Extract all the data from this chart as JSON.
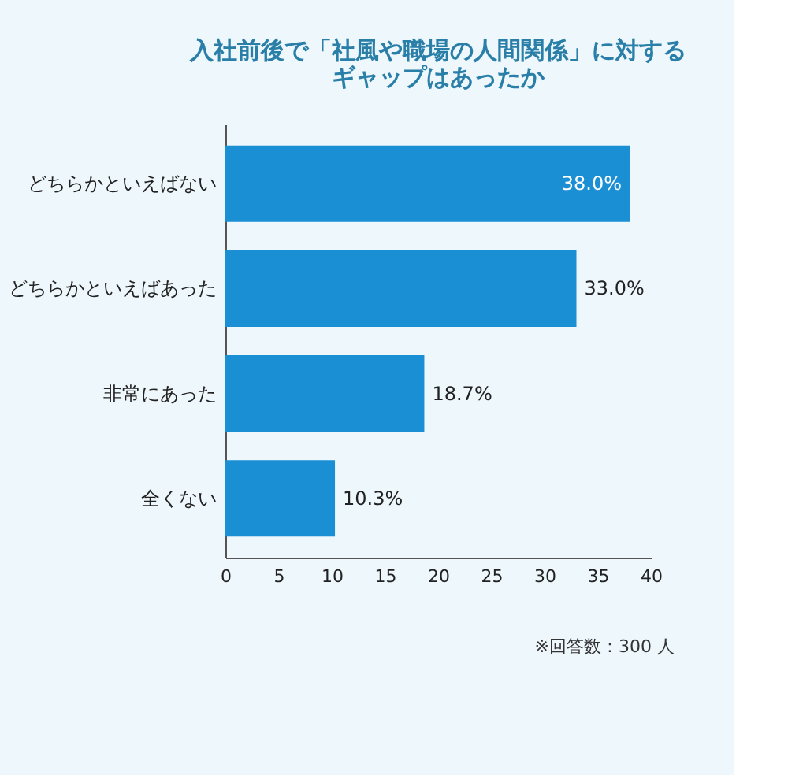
{
  "chart_data": {
    "type": "bar",
    "orientation": "horizontal",
    "title": "入社前後で「社風や職場の人間関係」に対するギャップはあったか",
    "categories": [
      "どちらかといえばない",
      "どちらかといえばあった",
      "非常にあった",
      "全くない"
    ],
    "values": [
      38.0,
      33.0,
      18.7,
      10.3
    ],
    "value_labels": [
      "38.0%",
      "33.0%",
      "18.7%",
      "10.3%"
    ],
    "color": "#1a8fd3",
    "xlim": [
      0,
      40
    ],
    "xticks": [
      0,
      5,
      10,
      15,
      20,
      25,
      30,
      35,
      40
    ],
    "grid": false,
    "annotations": [
      "※回答数：300 人"
    ]
  }
}
